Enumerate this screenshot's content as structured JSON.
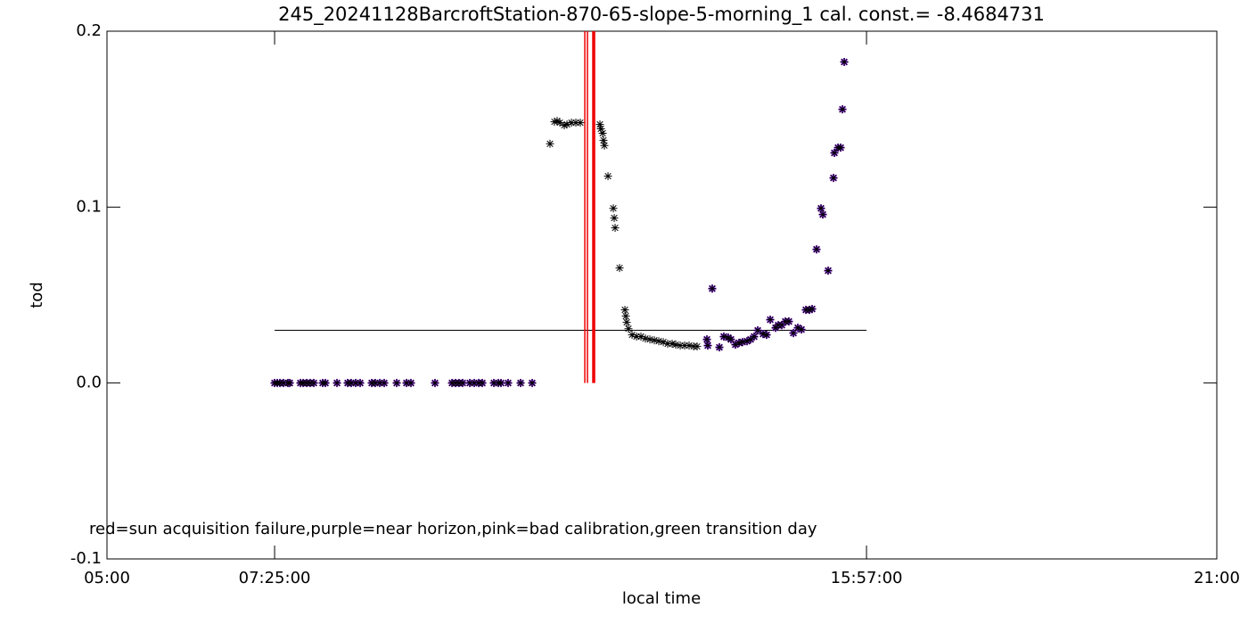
{
  "chart_data": {
    "type": "scatter",
    "title": "245_20241128BarcroftStation-870-65-slope-5-morning_1 cal. const.= -8.4684731",
    "x_label": "local time",
    "y_label": "tod",
    "annotation": "red=sun acquisition failure,purple=near horizon,pink=bad calibration,green transition day",
    "xlim": [
      5,
      21
    ],
    "ylim": [
      -0.1,
      0.2
    ],
    "xticks": [
      {
        "value": 5,
        "label": "05:00"
      },
      {
        "value": 7.4167,
        "label": "07:25:00"
      },
      {
        "value": 15.95,
        "label": "15:57:00"
      },
      {
        "value": 21,
        "label": "21:00"
      }
    ],
    "yticks": [
      -0.1,
      {
        "value": 0,
        "label": "0.0"
      },
      0.1,
      0.2
    ],
    "reference_line": {
      "color": "#000000",
      "y": 0.03,
      "x": [
        7.4167,
        15.95
      ]
    },
    "vertical_lines": {
      "color": "#ee0000",
      "x": [
        11.889,
        11.927,
        12.004,
        12.017,
        12.03
      ]
    },
    "series": [
      {
        "color": "#8a2be2",
        "x": [
          7.416,
          7.455,
          7.493,
          7.545,
          7.609,
          7.635,
          7.789,
          7.828,
          7.879,
          7.93,
          7.982,
          8.11,
          8.149,
          8.316,
          8.47,
          8.521,
          8.586,
          8.65,
          8.817,
          8.868,
          8.933,
          8.997,
          9.177,
          9.318,
          9.382,
          9.729,
          9.974,
          10.025,
          10.076,
          10.128,
          10.231,
          10.295,
          10.359,
          10.411,
          10.578,
          10.642,
          10.681,
          10.783,
          10.963,
          11.13,
          13.649,
          13.662,
          13.726,
          13.829,
          13.893,
          13.957,
          13.996,
          14.06,
          14.112,
          14.163,
          14.228,
          14.279,
          14.33,
          14.382,
          14.459,
          14.51,
          14.562,
          14.639,
          14.677,
          14.729,
          14.78,
          14.831,
          14.896,
          14.96,
          15.012,
          15.076,
          15.127,
          15.166,
          15.23,
          15.294,
          15.32,
          15.397,
          15.474,
          15.487,
          15.539,
          15.577,
          15.603,
          15.629
        ],
        "values": [
          0,
          0,
          0,
          0,
          0,
          0,
          0,
          0,
          0,
          0,
          0,
          0,
          0,
          0,
          0,
          0,
          0,
          0,
          0,
          0,
          0,
          0,
          0,
          0,
          0,
          0,
          0,
          0,
          0,
          0,
          0,
          0,
          0,
          0,
          0,
          0,
          0,
          0,
          0,
          0,
          0.0248,
          0.0213,
          0.0537,
          0.0203,
          0.0264,
          0.0258,
          0.0248,
          0.0218,
          0.0228,
          0.0233,
          0.0238,
          0.0248,
          0.0264,
          0.0299,
          0.0279,
          0.0274,
          0.036,
          0.0314,
          0.0329,
          0.0329,
          0.035,
          0.035,
          0.0284,
          0.0314,
          0.0304,
          0.0416,
          0.0416,
          0.0421,
          0.076,
          0.0993,
          0.0958,
          0.0639,
          0.1166,
          0.1308,
          0.1338,
          0.1338,
          0.1556,
          0.1825
        ]
      },
      {
        "color": "#000000",
        "x": [
          7.416,
          7.455,
          7.493,
          7.545,
          7.609,
          7.635,
          7.789,
          7.828,
          7.879,
          7.93,
          7.982,
          8.11,
          8.149,
          8.316,
          8.47,
          8.521,
          8.586,
          8.65,
          8.817,
          8.868,
          8.933,
          8.997,
          9.177,
          9.318,
          9.382,
          9.729,
          9.974,
          10.025,
          10.076,
          10.128,
          10.231,
          10.295,
          10.359,
          10.411,
          10.578,
          10.642,
          10.681,
          10.783,
          10.963,
          11.13,
          11.387,
          11.451,
          11.49,
          11.529,
          11.593,
          11.632,
          11.696,
          11.76,
          11.824,
          12.107,
          12.12,
          12.146,
          12.158,
          12.171,
          12.223,
          12.3,
          12.313,
          12.326,
          12.39,
          12.467,
          12.48,
          12.493,
          12.518,
          12.57,
          12.634,
          12.698,
          12.762,
          12.827,
          12.891,
          12.955,
          13.02,
          13.084,
          13.148,
          13.2,
          13.264,
          13.328,
          13.392,
          13.457,
          13.508,
          13.649,
          13.662,
          13.726,
          13.829,
          13.893,
          13.957,
          13.996,
          14.06,
          14.112,
          14.163,
          14.228,
          14.279,
          14.33,
          14.382,
          14.459,
          14.51,
          14.562,
          14.639,
          14.677,
          14.729,
          14.78,
          14.831,
          14.896,
          14.96,
          15.012,
          15.076,
          15.127,
          15.166,
          15.23,
          15.294,
          15.32,
          15.397,
          15.474,
          15.487,
          15.539,
          15.577,
          15.603,
          15.629
        ],
        "values": [
          0,
          0,
          0,
          0,
          0,
          0,
          0,
          0,
          0,
          0,
          0,
          0,
          0,
          0,
          0,
          0,
          0,
          0,
          0,
          0,
          0,
          0,
          0,
          0,
          0,
          0,
          0,
          0,
          0,
          0,
          0,
          0,
          0,
          0,
          0,
          0,
          0,
          0,
          0,
          0,
          0.136,
          0.1485,
          0.149,
          0.148,
          0.1465,
          0.147,
          0.148,
          0.148,
          0.148,
          0.147,
          0.1445,
          0.142,
          0.138,
          0.135,
          0.1176,
          0.0993,
          0.0938,
          0.0882,
          0.0654,
          0.0416,
          0.038,
          0.0345,
          0.0309,
          0.0274,
          0.0264,
          0.0264,
          0.0253,
          0.0248,
          0.0243,
          0.0238,
          0.0233,
          0.0223,
          0.0223,
          0.0218,
          0.0213,
          0.0213,
          0.0213,
          0.0208,
          0.0208,
          0.0248,
          0.0213,
          0.0537,
          0.0203,
          0.0264,
          0.0258,
          0.0248,
          0.0218,
          0.0228,
          0.0233,
          0.0238,
          0.0248,
          0.0264,
          0.0299,
          0.0279,
          0.0274,
          0.036,
          0.0314,
          0.0329,
          0.0329,
          0.035,
          0.035,
          0.0284,
          0.0314,
          0.0304,
          0.0416,
          0.0416,
          0.0421,
          0.076,
          0.0993,
          0.0958,
          0.0639,
          0.1166,
          0.1308,
          0.1338,
          0.1338,
          0.1556,
          0.1825
        ]
      }
    ]
  }
}
